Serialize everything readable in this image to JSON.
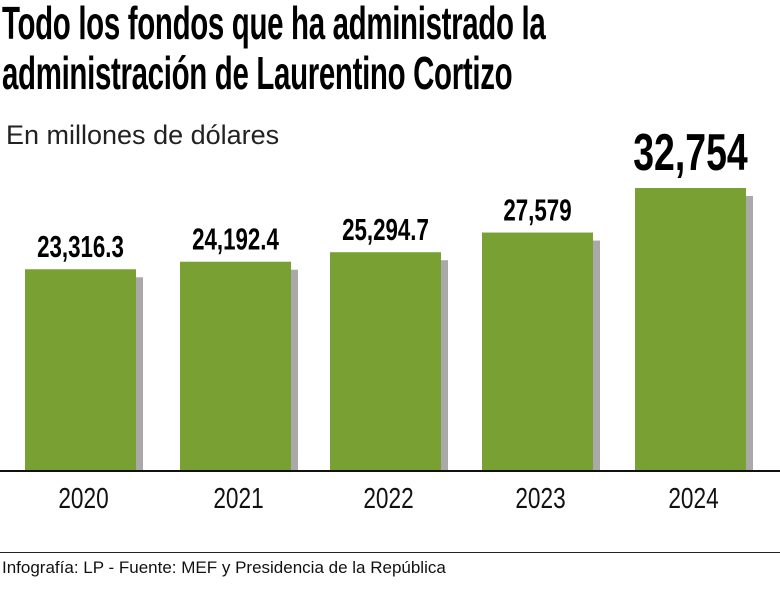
{
  "chart_data": {
    "type": "bar",
    "title": "Todo los fondos que ha administrado la administración de Laurentino Cortizo",
    "title_lines": [
      "Todo los fondos que ha administrado la",
      "administración de Laurentino Cortizo"
    ],
    "subtitle": "En millones de dólares",
    "xlabel": "",
    "ylabel": "En millones de dólares",
    "categories": [
      "2020",
      "2021",
      "2022",
      "2023",
      "2024"
    ],
    "values": [
      23316.3,
      24192.4,
      25294.7,
      27579,
      32754
    ],
    "data_labels": [
      "23,316.3",
      "24,192.4",
      "25,294.7",
      "27,579",
      "32,754"
    ],
    "ylim": [
      0,
      32754
    ],
    "grid": false,
    "legend": "none",
    "colors": {
      "bar": "#78a032",
      "shadow": "#a9a9a9",
      "axis": "#111111"
    }
  },
  "footer": "Infografía: LP - Fuente:  MEF y Presidencia de la República"
}
